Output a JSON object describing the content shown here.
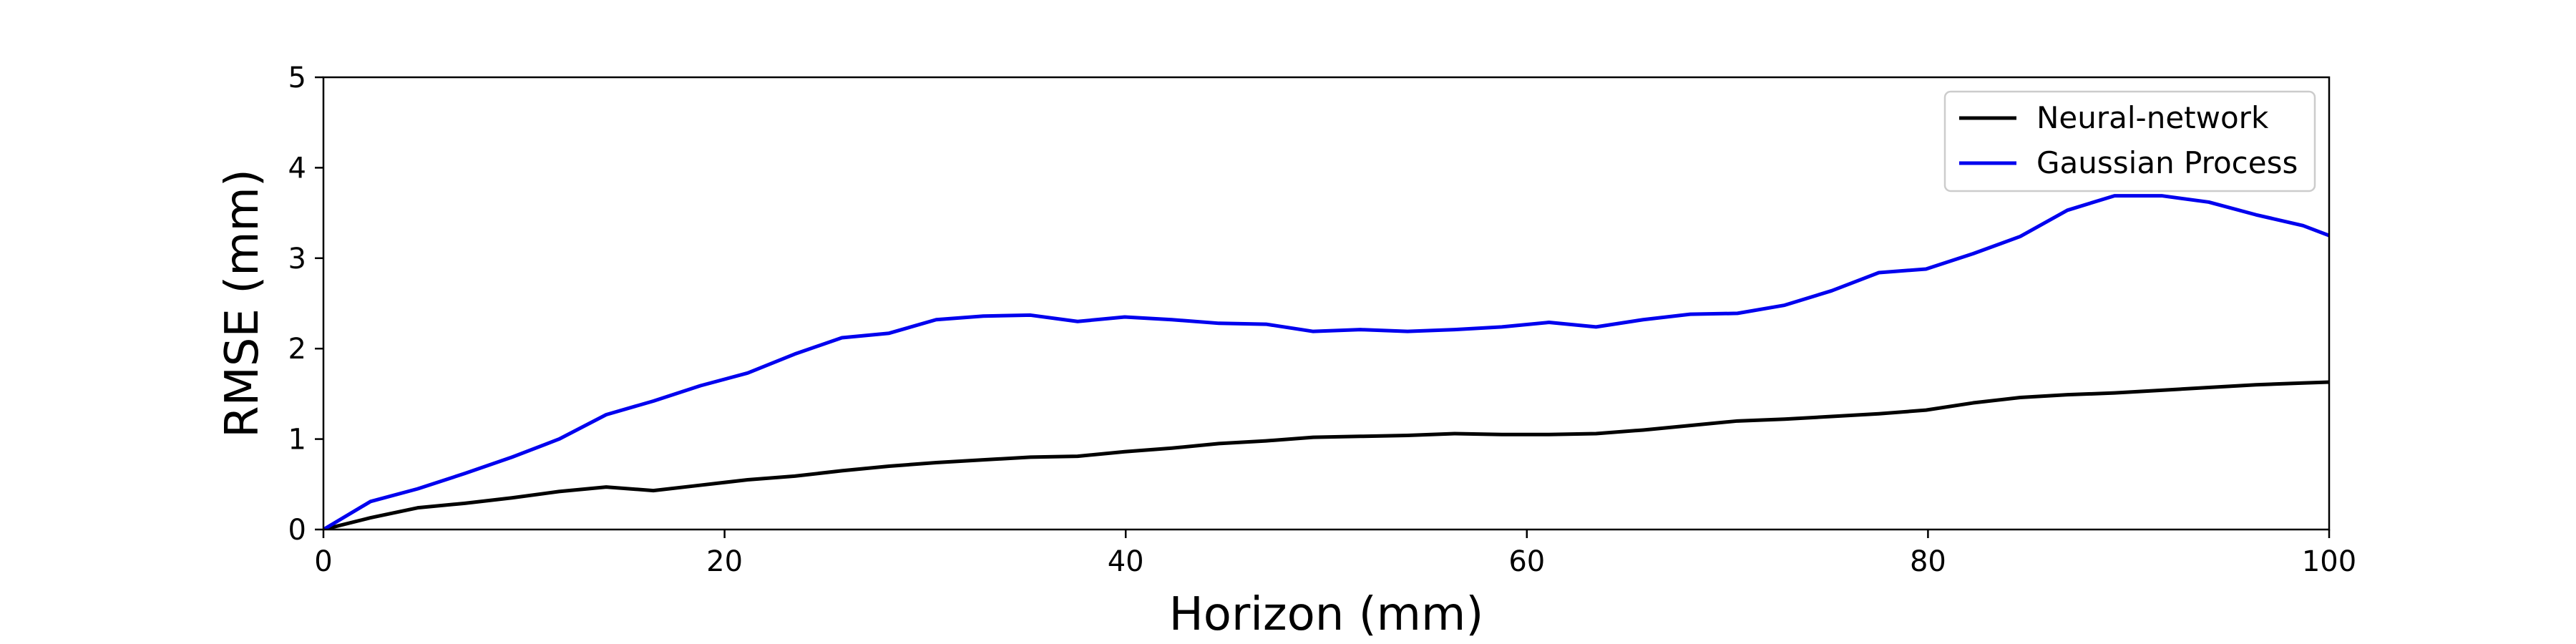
{
  "chart_data": {
    "type": "line",
    "xlabel": "Horizon (mm)",
    "ylabel": "RMSE (mm)",
    "xlim": [
      0,
      100
    ],
    "ylim": [
      0,
      5
    ],
    "xticks": [
      0,
      20,
      40,
      60,
      80,
      100
    ],
    "yticks": [
      0,
      1,
      2,
      3,
      4,
      5
    ],
    "grid": false,
    "legend_position": "top-right",
    "series": [
      {
        "name": "Neural-network",
        "color": "#000000",
        "x": [
          0,
          2.35,
          4.7,
          7.05,
          9.4,
          11.75,
          14.1,
          16.45,
          18.8,
          21.15,
          23.5,
          25.85,
          28.2,
          30.55,
          32.9,
          35.25,
          37.6,
          39.95,
          42.3,
          44.65,
          47.0,
          49.35,
          51.7,
          54.05,
          56.4,
          58.75,
          61.1,
          63.45,
          65.8,
          68.15,
          70.5,
          72.85,
          75.2,
          77.55,
          79.9,
          82.25,
          84.6,
          86.95,
          89.3,
          91.65,
          94.0,
          96.35,
          98.7,
          100
        ],
        "y": [
          0.0,
          0.13,
          0.24,
          0.29,
          0.35,
          0.42,
          0.47,
          0.43,
          0.49,
          0.55,
          0.59,
          0.65,
          0.7,
          0.74,
          0.77,
          0.8,
          0.81,
          0.86,
          0.9,
          0.95,
          0.98,
          1.02,
          1.03,
          1.04,
          1.06,
          1.05,
          1.05,
          1.06,
          1.1,
          1.15,
          1.2,
          1.22,
          1.25,
          1.28,
          1.32,
          1.4,
          1.46,
          1.49,
          1.51,
          1.54,
          1.57,
          1.6,
          1.62,
          1.63
        ]
      },
      {
        "name": "Gaussian Process",
        "color": "#0000ee",
        "x": [
          0,
          2.35,
          4.7,
          7.05,
          9.4,
          11.75,
          14.1,
          16.45,
          18.8,
          21.15,
          23.5,
          25.85,
          28.2,
          30.55,
          32.9,
          35.25,
          37.6,
          39.95,
          42.3,
          44.65,
          47.0,
          49.35,
          51.7,
          54.05,
          56.4,
          58.75,
          61.1,
          63.45,
          65.8,
          68.15,
          70.5,
          72.85,
          75.2,
          77.55,
          79.9,
          82.25,
          84.6,
          86.95,
          89.3,
          91.65,
          94.0,
          96.35,
          98.7,
          100
        ],
        "y": [
          0.0,
          0.31,
          0.45,
          0.62,
          0.8,
          1.0,
          1.27,
          1.42,
          1.59,
          1.73,
          1.94,
          2.12,
          2.17,
          2.32,
          2.36,
          2.37,
          2.3,
          2.35,
          2.32,
          2.28,
          2.27,
          2.19,
          2.21,
          2.19,
          2.21,
          2.24,
          2.29,
          2.24,
          2.32,
          2.38,
          2.39,
          2.48,
          2.64,
          2.84,
          2.88,
          3.05,
          3.24,
          3.53,
          3.69,
          3.69,
          3.62,
          3.48,
          3.36,
          3.25
        ]
      }
    ]
  }
}
